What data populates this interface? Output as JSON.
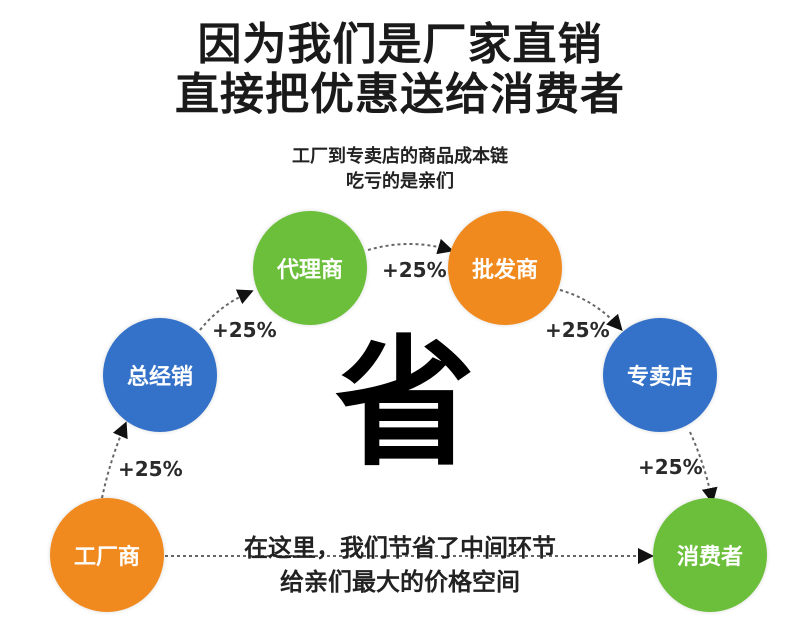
{
  "title": {
    "line1": "因为我们是厂家直销",
    "line2": "直接把优惠送给消费者"
  },
  "subtitle": {
    "line1": "工厂到专卖店的商品成本链",
    "line2": "吃亏的是亲们"
  },
  "center_char": "省",
  "bottom_text": {
    "line1": "在这里，我们节省了中间环节",
    "line2": "给亲们最大的价格空间"
  },
  "nodes": [
    {
      "label": "工厂商",
      "color": "#f08a1e"
    },
    {
      "label": "总经销",
      "color": "#3372c8"
    },
    {
      "label": "代理商",
      "color": "#6cbf3a"
    },
    {
      "label": "批发商",
      "color": "#f08a1e"
    },
    {
      "label": "专卖店",
      "color": "#3372c8"
    },
    {
      "label": "消费者",
      "color": "#6cbf3a"
    }
  ],
  "markups": [
    "+25%",
    "+25%",
    "+25%",
    "+25%",
    "+25%"
  ]
}
